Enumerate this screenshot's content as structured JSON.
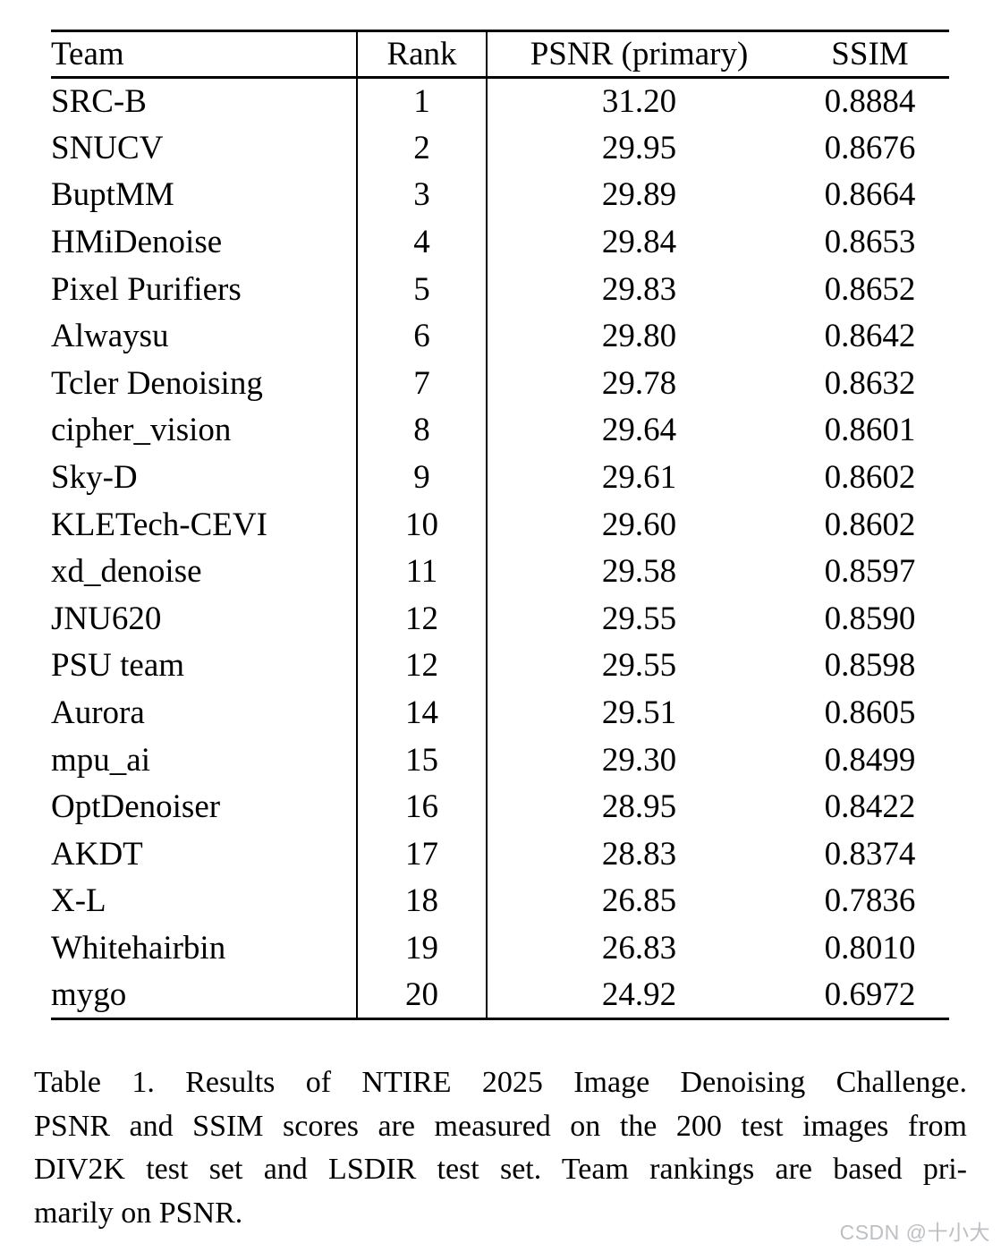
{
  "table": {
    "columns": [
      "Team",
      "Rank",
      "PSNR (primary)",
      "SSIM"
    ],
    "rows": [
      [
        "SRC-B",
        "1",
        "31.20",
        "0.8884"
      ],
      [
        "SNUCV",
        "2",
        "29.95",
        "0.8676"
      ],
      [
        "BuptMM",
        "3",
        "29.89",
        "0.8664"
      ],
      [
        "HMiDenoise",
        "4",
        "29.84",
        "0.8653"
      ],
      [
        "Pixel Purifiers",
        "5",
        "29.83",
        "0.8652"
      ],
      [
        "Alwaysu",
        "6",
        "29.80",
        "0.8642"
      ],
      [
        "Tcler Denoising",
        "7",
        "29.78",
        "0.8632"
      ],
      [
        "cipher_vision",
        "8",
        "29.64",
        "0.8601"
      ],
      [
        "Sky-D",
        "9",
        "29.61",
        "0.8602"
      ],
      [
        "KLETech-CEVI",
        "10",
        "29.60",
        "0.8602"
      ],
      [
        "xd_denoise",
        "11",
        "29.58",
        "0.8597"
      ],
      [
        "JNU620",
        "12",
        "29.55",
        "0.8590"
      ],
      [
        "PSU team",
        "12",
        "29.55",
        "0.8598"
      ],
      [
        "Aurora",
        "14",
        "29.51",
        "0.8605"
      ],
      [
        "mpu_ai",
        "15",
        "29.30",
        "0.8499"
      ],
      [
        "OptDenoiser",
        "16",
        "28.95",
        "0.8422"
      ],
      [
        "AKDT",
        "17",
        "28.83",
        "0.8374"
      ],
      [
        "X-L",
        "18",
        "26.85",
        "0.7836"
      ],
      [
        "Whitehairbin",
        "19",
        "26.83",
        "0.8010"
      ],
      [
        "mygo",
        "20",
        "24.92",
        "0.6972"
      ]
    ]
  },
  "caption": {
    "lines": [
      "Table 1.  Results of NTIRE 2025 Image Denoising Challenge.",
      "PSNR and SSIM scores are measured on the 200 test images from",
      "DIV2K test set and LSDIR test set.  Team rankings are based pri-",
      "marily on PSNR."
    ]
  },
  "watermark": {
    "text": "CSDN @十小大"
  },
  "colors": {
    "text": "#000000",
    "background": "#ffffff",
    "rule": "#000000",
    "watermark": "#bcc0c4"
  }
}
